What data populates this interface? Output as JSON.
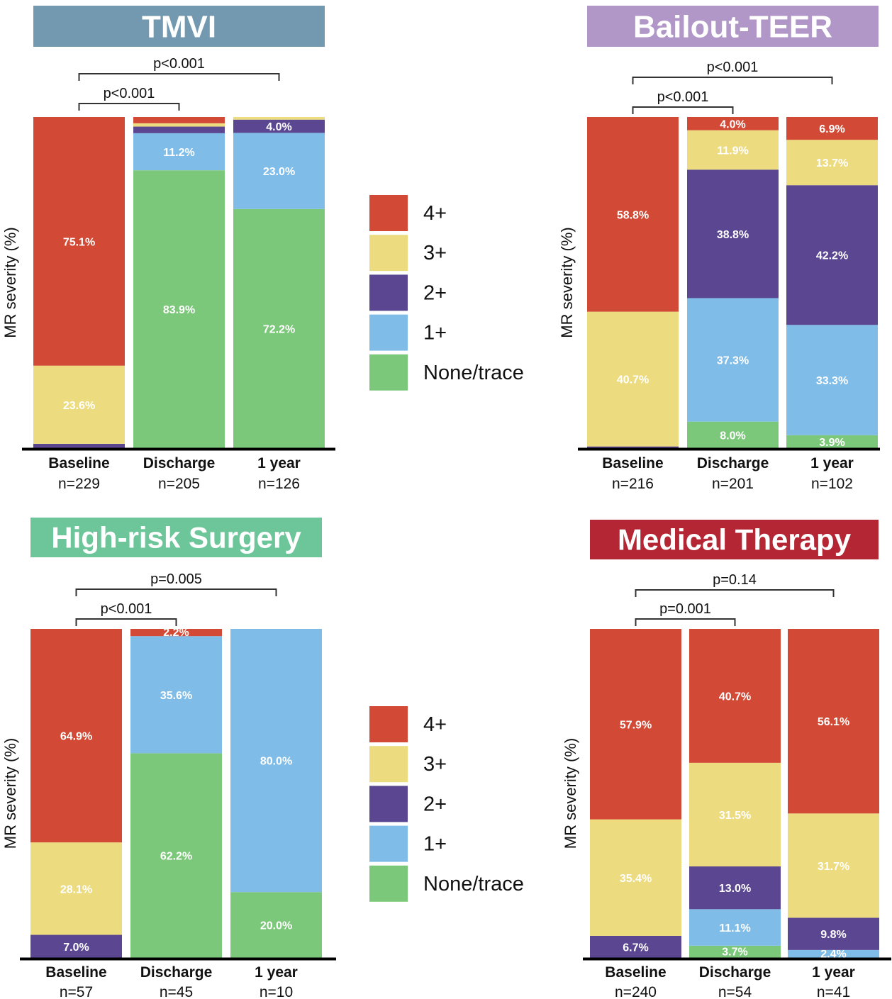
{
  "legend": {
    "items": [
      {
        "label": "4+",
        "color": "#D24A35"
      },
      {
        "label": "3+",
        "color": "#EDDC7F"
      },
      {
        "label": "2+",
        "color": "#5B4691"
      },
      {
        "label": "1+",
        "color": "#7FBDE8"
      },
      {
        "label": "None/trace",
        "color": "#7CC87A"
      }
    ]
  },
  "chart_data": [
    {
      "type": "bar",
      "stacked": true,
      "title": "TMVI",
      "title_color": "#7399B0",
      "ylabel": "MR severity (%)",
      "ylim": [
        0,
        100
      ],
      "grid": false,
      "categories": [
        "Baseline",
        "Discharge",
        "1 year"
      ],
      "n_labels": [
        "n=229",
        "n=205",
        "n=126"
      ],
      "series": [
        {
          "name": "None/trace",
          "values": [
            0,
            83.9,
            72.2
          ]
        },
        {
          "name": "1+",
          "values": [
            0,
            11.2,
            23.0
          ]
        },
        {
          "name": "2+",
          "values": [
            1.3,
            2.0,
            4.0
          ]
        },
        {
          "name": "3+",
          "values": [
            23.6,
            1.0,
            0.8
          ]
        },
        {
          "name": "4+",
          "values": [
            75.1,
            1.9,
            0
          ]
        }
      ],
      "data_labels": [
        [
          "",
          "",
          "",
          "23.6%",
          "75.1%"
        ],
        [
          "83.9%",
          "11.2%",
          "",
          "",
          ""
        ],
        [
          "72.2%",
          "23.0%",
          "4.0%",
          "",
          ""
        ]
      ],
      "comparisons": [
        {
          "from": 0,
          "to": 2,
          "label": "p<0.001"
        },
        {
          "from": 0,
          "to": 1,
          "label": "p<0.001"
        }
      ]
    },
    {
      "type": "bar",
      "stacked": true,
      "title": "Bailout-TEER",
      "title_color": "#B197C7",
      "ylabel": "MR severity (%)",
      "ylim": [
        0,
        100
      ],
      "grid": false,
      "categories": [
        "Baseline",
        "Discharge",
        "1 year"
      ],
      "n_labels": [
        "n=216",
        "n=201",
        "n=102"
      ],
      "series": [
        {
          "name": "None/trace",
          "values": [
            0,
            8.0,
            3.9
          ]
        },
        {
          "name": "1+",
          "values": [
            0,
            37.3,
            33.3
          ]
        },
        {
          "name": "2+",
          "values": [
            0.5,
            38.8,
            42.2
          ]
        },
        {
          "name": "3+",
          "values": [
            40.7,
            11.9,
            13.7
          ]
        },
        {
          "name": "4+",
          "values": [
            58.8,
            4.0,
            6.9
          ]
        }
      ],
      "data_labels": [
        [
          "",
          "",
          "",
          "40.7%",
          "58.8%"
        ],
        [
          "8.0%",
          "37.3%",
          "38.8%",
          "11.9%",
          "4.0%"
        ],
        [
          "3.9%",
          "33.3%",
          "42.2%",
          "13.7%",
          "6.9%"
        ]
      ],
      "comparisons": [
        {
          "from": 0,
          "to": 2,
          "label": "p<0.001"
        },
        {
          "from": 0,
          "to": 1,
          "label": "p<0.001"
        }
      ]
    },
    {
      "type": "bar",
      "stacked": true,
      "title": "High-risk Surgery",
      "title_color": "#6CC69A",
      "ylabel": "MR severity (%)",
      "ylim": [
        0,
        100
      ],
      "grid": false,
      "categories": [
        "Baseline",
        "Discharge",
        "1 year"
      ],
      "n_labels": [
        "n=57",
        "n=45",
        "n=10"
      ],
      "series": [
        {
          "name": "None/trace",
          "values": [
            0,
            62.2,
            20.0
          ]
        },
        {
          "name": "1+",
          "values": [
            0,
            35.6,
            80.0
          ]
        },
        {
          "name": "2+",
          "values": [
            7.0,
            0,
            0
          ]
        },
        {
          "name": "3+",
          "values": [
            28.1,
            0,
            0
          ]
        },
        {
          "name": "4+",
          "values": [
            64.9,
            2.2,
            0
          ]
        }
      ],
      "data_labels": [
        [
          "",
          "",
          "7.0%",
          "28.1%",
          "64.9%"
        ],
        [
          "62.2%",
          "35.6%",
          "",
          "",
          "2.2%"
        ],
        [
          "20.0%",
          "80.0%",
          "",
          "",
          ""
        ]
      ],
      "comparisons": [
        {
          "from": 0,
          "to": 2,
          "label": "p=0.005"
        },
        {
          "from": 0,
          "to": 1,
          "label": "p<0.001"
        }
      ]
    },
    {
      "type": "bar",
      "stacked": true,
      "title": "Medical Therapy",
      "title_color": "#B52634",
      "ylabel": "MR severity (%)",
      "ylim": [
        0,
        100
      ],
      "grid": false,
      "categories": [
        "Baseline",
        "Discharge",
        "1 year"
      ],
      "n_labels": [
        "n=240",
        "n=54",
        "n=41"
      ],
      "series": [
        {
          "name": "None/trace",
          "values": [
            0,
            3.7,
            0
          ]
        },
        {
          "name": "1+",
          "values": [
            0,
            11.1,
            2.4
          ]
        },
        {
          "name": "2+",
          "values": [
            6.7,
            13.0,
            9.8
          ]
        },
        {
          "name": "3+",
          "values": [
            35.4,
            31.5,
            31.7
          ]
        },
        {
          "name": "4+",
          "values": [
            57.9,
            40.7,
            56.1
          ]
        }
      ],
      "data_labels": [
        [
          "",
          "",
          "6.7%",
          "35.4%",
          "57.9%"
        ],
        [
          "3.7%",
          "11.1%",
          "13.0%",
          "31.5%",
          "40.7%"
        ],
        [
          "",
          "2.4%",
          "9.8%",
          "31.7%",
          "56.1%"
        ]
      ],
      "comparisons": [
        {
          "from": 0,
          "to": 2,
          "label": "p=0.14"
        },
        {
          "from": 0,
          "to": 1,
          "label": "p=0.001"
        }
      ]
    }
  ]
}
